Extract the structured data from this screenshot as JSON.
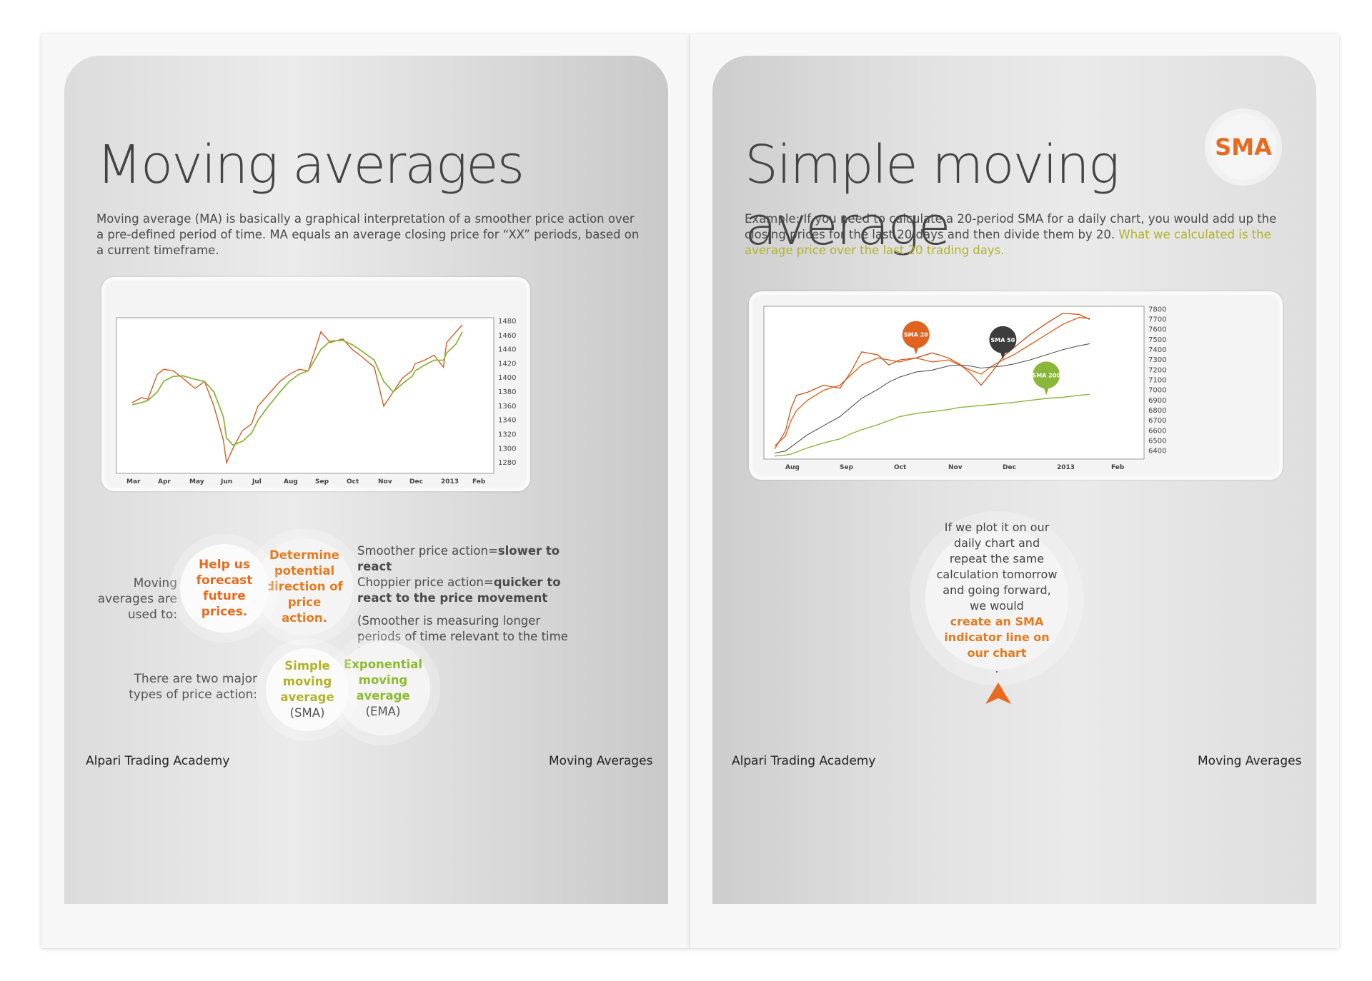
{
  "left_page": {
    "title": "Moving averages",
    "intro": "Moving average (MA) is basically a graphical interpretation of a smoother price action over a pre-defined period of time. MA equals an average closing price for “XX” periods, based on a current timeframe.",
    "used_to_label": "Moving averages are used to:",
    "circle_forecast": "Help us forecast future prices.",
    "circle_direction": "Determine potential direction of price action.",
    "smoother_line1_a": "Smoother price action=",
    "smoother_line1_b": "slower to react",
    "smoother_line2_a": "Choppier price action=",
    "smoother_line2_b": "quicker to react to the price movement",
    "smoother_note": "(Smoother is measuring longer periods of time relevant to the time frame)",
    "types_label": "There are two major types of price action:",
    "circle_sma_colored": "Simple moving average",
    "circle_sma_abbr": "(SMA)",
    "circle_ema_colored": "Exponential moving average",
    "circle_ema_abbr": "(EMA)",
    "footer_left": "Alpari Trading Academy",
    "footer_right": "Moving Averages"
  },
  "right_page": {
    "title": "Simple moving average",
    "badge": "SMA",
    "intro_plain": "Example: If you need to calculate a 20-period SMA for a daily chart, you would add up the closing prices for the last 20 days and then divide them by 20.",
    "intro_highlight": "What we calculated is the average price over the last 20 trading days.",
    "bubble_plain": "If we plot it on our daily chart and repeat the same calculation tomorrow and going forward, we would",
    "bubble_highlight": "create an SMA indicator line on our chart",
    "bubble_end": ".",
    "footer_left": "Alpari Trading Academy",
    "footer_right": "Moving Averages"
  },
  "chart_data": [
    {
      "type": "line",
      "x_ticks": [
        "Mar",
        "Apr",
        "May",
        "Jun",
        "Jul",
        "Aug",
        "Sep",
        "Oct",
        "Nov",
        "Dec",
        "2013",
        "Feb"
      ],
      "y_ticks": [
        1280,
        1300,
        1320,
        1340,
        1360,
        1380,
        1400,
        1420,
        1440,
        1460,
        1480
      ],
      "ylim": [
        1265,
        1485
      ],
      "x": [
        0,
        0.3,
        0.5,
        0.8,
        1,
        1.3,
        1.6,
        2,
        2.3,
        2.6,
        2.9,
        3,
        3.2,
        3.5,
        3.8,
        4,
        4.3,
        4.7,
        5,
        5.3,
        5.6,
        6,
        6.3,
        6.7,
        7,
        7.3,
        7.7,
        8,
        8.3,
        8.6,
        8.9,
        9,
        9.3,
        9.6,
        9.9,
        10,
        10.3,
        10.5
      ],
      "series": [
        {
          "values": [
            1365,
            1372,
            1370,
            1405,
            1412,
            1410,
            1400,
            1385,
            1395,
            1360,
            1312,
            1280,
            1300,
            1325,
            1335,
            1360,
            1375,
            1395,
            1405,
            1412,
            1410,
            1465,
            1450,
            1455,
            1440,
            1430,
            1415,
            1360,
            1380,
            1400,
            1410,
            1420,
            1425,
            1432,
            1415,
            1450,
            1465,
            1475
          ]
        },
        {
          "values": [
            1362,
            1365,
            1368,
            1380,
            1395,
            1402,
            1403,
            1398,
            1395,
            1380,
            1345,
            1315,
            1305,
            1310,
            1322,
            1340,
            1358,
            1380,
            1395,
            1405,
            1410,
            1440,
            1452,
            1453,
            1447,
            1438,
            1425,
            1395,
            1380,
            1392,
            1402,
            1410,
            1418,
            1425,
            1425,
            1435,
            1448,
            1465
          ]
        }
      ]
    },
    {
      "type": "line",
      "x_ticks": [
        "Aug",
        "Sep",
        "Oct",
        "Nov",
        "Dec",
        "2013",
        "Feb"
      ],
      "y_ticks": [
        6400,
        6500,
        6600,
        6700,
        6800,
        6900,
        7000,
        7100,
        7200,
        7300,
        7400,
        7500,
        7600,
        7700,
        7800
      ],
      "ylim": [
        6320,
        7830
      ],
      "x": [
        -0.3,
        -0.1,
        0,
        0.1,
        0.3,
        0.6,
        0.9,
        1.1,
        1.3,
        1.6,
        1.8,
        2,
        2.3,
        2.6,
        2.9,
        3.1,
        3.3,
        3.5,
        3.7,
        3.9,
        4.1,
        4.4,
        4.7,
        5,
        5.3,
        5.5
      ],
      "series": [
        {
          "name": "SMA 20",
          "values": [
            6450,
            6550,
            6700,
            6800,
            6900,
            7000,
            7050,
            7150,
            7250,
            7320,
            7300,
            7280,
            7320,
            7280,
            7300,
            7250,
            7200,
            7160,
            7240,
            7300,
            7350,
            7450,
            7550,
            7650,
            7720,
            7710
          ]
        },
        {
          "name": "SMA 50",
          "values": [
            6380,
            6400,
            6440,
            6480,
            6560,
            6650,
            6740,
            6830,
            6920,
            7010,
            7080,
            7130,
            7180,
            7200,
            7240,
            7250,
            7240,
            7220,
            7230,
            7240,
            7260,
            7300,
            7350,
            7400,
            7440,
            7460
          ]
        },
        {
          "name": "SMA 200",
          "values": [
            6350,
            6360,
            6370,
            6390,
            6430,
            6480,
            6520,
            6570,
            6610,
            6660,
            6700,
            6740,
            6770,
            6790,
            6810,
            6830,
            6840,
            6850,
            6860,
            6870,
            6880,
            6900,
            6920,
            6930,
            6950,
            6960
          ]
        },
        {
          "values": [
            6420,
            6600,
            6820,
            6950,
            6980,
            7050,
            7020,
            7180,
            7380,
            7350,
            7250,
            7300,
            7320,
            7370,
            7320,
            7260,
            7170,
            7050,
            7180,
            7330,
            7420,
            7550,
            7660,
            7760,
            7750,
            7700
          ]
        }
      ]
    }
  ]
}
